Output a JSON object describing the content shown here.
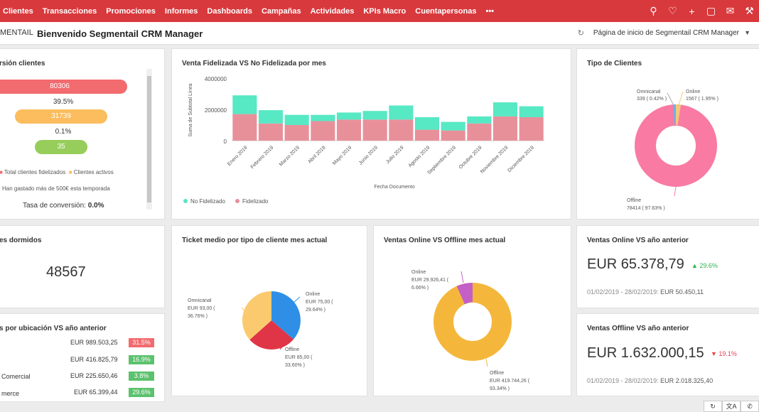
{
  "nav": {
    "items": [
      "Clientes",
      "Transacciones",
      "Promociones",
      "Informes",
      "Dashboards",
      "Campañas",
      "Actividades",
      "KPIs Macro",
      "Cuentapersonas",
      "•••"
    ]
  },
  "top_icons": [
    "search-icon",
    "bell-icon",
    "plus-icon",
    "note-icon",
    "mail-icon",
    "tools-icon"
  ],
  "header": {
    "brand": "MENTAIL",
    "welcome": "Bienvenido Segmentail CRM Manager",
    "homepage": "Página de inicio de Segmentail CRM Manager"
  },
  "conversion": {
    "title": "rsión clientes",
    "bars": [
      "80306",
      "31739",
      "35"
    ],
    "pcts": [
      "39.5%",
      "0.1%"
    ],
    "legend": [
      "Total clientes fidelizados",
      "Clientes activos",
      "Han gastado más de 500€ esta temporada"
    ],
    "rate_label": "Tasa de conversión: ",
    "rate_value": "0.0%",
    "colors": [
      "#f26b6f",
      "#fbbd5d",
      "#97cd5a"
    ]
  },
  "bar_chart": {
    "title": "Venta Fidelizada VS No Fidelizada por mes",
    "ylabel": "Suma de Subtotal Línea",
    "xlabel": "Fecha Documento",
    "yticks": [
      "4000000",
      "2000000",
      "0"
    ],
    "legend": [
      "No Fidelizado",
      "Fidelizado"
    ]
  },
  "chart_data": [
    {
      "type": "bar",
      "title": "Venta Fidelizada VS No Fidelizada por mes",
      "xlabel": "Fecha Documento",
      "ylabel": "Suma de Subtotal Línea",
      "ylim": [
        0,
        4000000
      ],
      "categories": [
        "Enero 2019",
        "Febrero 2019",
        "Marzo 2019",
        "Abril 2019",
        "Mayo 2019",
        "Junio 2019",
        "Julio 2019",
        "Agosto 2019",
        "Septiembre 2019",
        "Octubre 2019",
        "Noviembre 2019",
        "Diciembre 2019"
      ],
      "series": [
        {
          "name": "Fidelizado",
          "color": "#e8909a",
          "values": [
            1700000,
            1100000,
            1000000,
            1250000,
            1350000,
            1350000,
            1350000,
            700000,
            650000,
            1100000,
            1550000,
            1500000
          ]
        },
        {
          "name": "No Fidelizado",
          "color": "#57e8c4",
          "values": [
            1200000,
            850000,
            650000,
            400000,
            450000,
            550000,
            900000,
            800000,
            550000,
            450000,
            900000,
            700000
          ]
        }
      ],
      "stacked": true,
      "legend": "bottom-left"
    },
    {
      "type": "pie",
      "title": "Tipo de Clientes",
      "donut": true,
      "slices": [
        {
          "name": "Offline",
          "value": 78414,
          "label": "78414 ( 97.63% )",
          "color": "#f97aa3"
        },
        {
          "name": "Online",
          "value": 1567,
          "label": "1567 ( 1.95% )",
          "color": "#f2c97a"
        },
        {
          "name": "Omnicanal",
          "value": 339,
          "label": "339 ( 0.42% )",
          "color": "#6fb0e8"
        }
      ]
    },
    {
      "type": "pie",
      "title": "Ticket medio por tipo de cliente mes actual",
      "slices": [
        {
          "name": "Online",
          "value": 75.0,
          "label": "EUR 75,00 ( 29.64% )",
          "color": "#2f8fe6"
        },
        {
          "name": "Offline",
          "value": 85.0,
          "label": "EUR 85,00 ( 33.60% )",
          "color": "#e03546"
        },
        {
          "name": "Omnicanal",
          "value": 93.0,
          "label": "EUR 93,00 ( 36.76% )",
          "color": "#fbca6e"
        }
      ]
    },
    {
      "type": "pie",
      "title": "Ventas Online VS Offline mes actual",
      "donut": true,
      "slices": [
        {
          "name": "Offline",
          "value": 419744.26,
          "label": "EUR 419.744,26 ( 93.34% )",
          "color": "#f4b73c"
        },
        {
          "name": "Online",
          "value": 29926.41,
          "label": "EUR 29.926,41 ( 6.66% )",
          "color": "#c35fc7"
        }
      ]
    }
  ],
  "tipo": {
    "title": "Tipo de Clientes",
    "omni_name": "Omnicanal",
    "omni_val": "339 ( 0.42% )",
    "online_name": "Online",
    "online_val": "1567 ( 1.95% )",
    "offline_name": "Offline",
    "offline_val": "78414 ( 97.63% )"
  },
  "dormidos": {
    "title": "es dormidos",
    "value": "48567"
  },
  "ticket": {
    "title": "Ticket medio por tipo de cliente mes actual",
    "omni_name": "Omnicanal",
    "omni_val": "EUR 93,00 (",
    "omni_pct": "36.76% )",
    "online_name": "Online",
    "online_val": "EUR 75,00 (",
    "online_pct": "29.64% )",
    "offline_name": "Offline",
    "offline_val": "EUR 85,00 (",
    "offline_pct": "33.60% )"
  },
  "onoff": {
    "title": "Ventas Online VS Offline mes actual",
    "online_name": "Online",
    "online_val": "EUR 29.926,41 (",
    "online_pct": "6.66% )",
    "offline_name": "Offline",
    "offline_val": "EUR 419.744,26 (",
    "offline_pct": "93.34% )"
  },
  "online_year": {
    "title": "Ventas Online VS año anterior",
    "value": "EUR 65.378,79",
    "trend": "▲ 29.6%",
    "trend_color": "#2bb24c",
    "period": "01/02/2019 - 28/02/2019:",
    "prev": "EUR 50.450,11"
  },
  "offline_year": {
    "title": "Ventas Offline VS año anterior",
    "value": "EUR 1.632.000,15",
    "trend": "▼ 19.1%",
    "trend_color": "#e8414f",
    "period": "01/02/2019 - 28/02/2019:",
    "prev": "EUR 2.018.325,40"
  },
  "ubicacion": {
    "title": "s por ubicación VS año anterior",
    "rows": [
      {
        "name": "",
        "value": "EUR 989.503,25",
        "pct": "31.5%",
        "color": "#f26b6f"
      },
      {
        "name": "",
        "value": "EUR 416.825,79",
        "pct": "16.9%",
        "color": "#5cc26d"
      },
      {
        "name": "Comercial",
        "value": "EUR 225.650,46",
        "pct": "3.8%",
        "color": "#5cc26d"
      },
      {
        "name": "merce",
        "value": "EUR 65.399,44",
        "pct": "29.6%",
        "color": "#5cc26d"
      }
    ]
  }
}
